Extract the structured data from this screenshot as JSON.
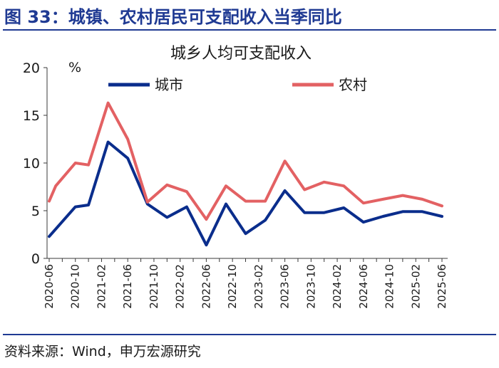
{
  "figure": {
    "title": "图 33：城镇、农村居民可支配收入当季同比",
    "source": "资料来源：Wind，申万宏源研究"
  },
  "colors": {
    "brand": "#1f3a93",
    "urban": "#0a2d8c",
    "rural": "#e36163"
  },
  "chart_data": {
    "type": "line",
    "title": "城乡人均可支配收入",
    "ylabel": "%",
    "ylim": [
      0,
      20
    ],
    "yticks": [
      0,
      5,
      10,
      15,
      20
    ],
    "legend_position": "top",
    "grid": false,
    "x": [
      "2020-06",
      "2020-08",
      "2020-10",
      "2020-12",
      "2021-02",
      "2021-04",
      "2021-06",
      "2021-08",
      "2021-10",
      "2021-12",
      "2022-02",
      "2022-04",
      "2022-06",
      "2022-08",
      "2022-10",
      "2022-12",
      "2023-02",
      "2023-04",
      "2023-06",
      "2023-08",
      "2023-10",
      "2023-12",
      "2024-02",
      "2024-04",
      "2024-06",
      "2024-08",
      "2024-10",
      "2024-12",
      "2025-02",
      "2025-04",
      "2025-06"
    ],
    "xtick_labels": [
      "2020-06",
      "2020-10",
      "2021-02",
      "2021-06",
      "2021-10",
      "2022-02",
      "2022-06",
      "2022-10",
      "2023-02",
      "2023-06",
      "2023-10",
      "2024-02",
      "2024-06",
      "2024-10",
      "2025-02",
      "2025-06"
    ],
    "series": [
      {
        "name": "城市",
        "color": "#0a2d8c",
        "points": [
          [
            "2020-06",
            2.3
          ],
          [
            "2020-10",
            5.4
          ],
          [
            "2020-12",
            5.6
          ],
          [
            "2021-03",
            12.2
          ],
          [
            "2021-06",
            10.5
          ],
          [
            "2021-09",
            5.7
          ],
          [
            "2021-12",
            4.3
          ],
          [
            "2022-03",
            5.4
          ],
          [
            "2022-06",
            1.4
          ],
          [
            "2022-09",
            5.7
          ],
          [
            "2022-12",
            2.6
          ],
          [
            "2023-03",
            4.0
          ],
          [
            "2023-06",
            7.1
          ],
          [
            "2023-09",
            4.8
          ],
          [
            "2023-12",
            4.8
          ],
          [
            "2024-03",
            5.3
          ],
          [
            "2024-06",
            3.8
          ],
          [
            "2024-09",
            4.4
          ],
          [
            "2024-12",
            4.9
          ],
          [
            "2025-03",
            4.9
          ],
          [
            "2025-06",
            4.4
          ]
        ]
      },
      {
        "name": "农村",
        "color": "#e36163",
        "points": [
          [
            "2020-06",
            6.0
          ],
          [
            "2020-07",
            7.6
          ],
          [
            "2020-10",
            10.0
          ],
          [
            "2020-12",
            9.8
          ],
          [
            "2021-03",
            16.3
          ],
          [
            "2021-06",
            12.5
          ],
          [
            "2021-09",
            5.9
          ],
          [
            "2021-12",
            7.7
          ],
          [
            "2022-03",
            7.0
          ],
          [
            "2022-06",
            4.1
          ],
          [
            "2022-09",
            7.6
          ],
          [
            "2022-12",
            6.0
          ],
          [
            "2023-03",
            6.0
          ],
          [
            "2023-06",
            10.2
          ],
          [
            "2023-09",
            7.2
          ],
          [
            "2023-12",
            8.0
          ],
          [
            "2024-03",
            7.6
          ],
          [
            "2024-06",
            5.8
          ],
          [
            "2024-09",
            6.2
          ],
          [
            "2024-12",
            6.6
          ],
          [
            "2025-03",
            6.2
          ],
          [
            "2025-06",
            5.5
          ]
        ]
      }
    ]
  }
}
